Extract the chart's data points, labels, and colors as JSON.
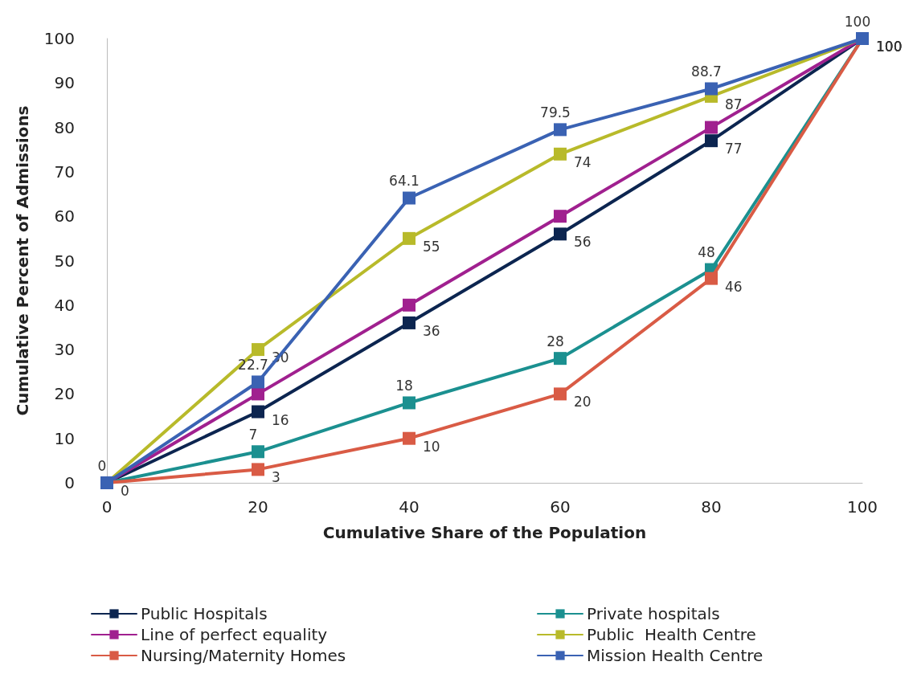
{
  "chart_data": {
    "type": "line",
    "xlabel": "Cumulative Share of the Population",
    "ylabel": "Cumulative Percent of Admissions",
    "x": [
      0,
      20,
      40,
      60,
      80,
      100
    ],
    "xlim": [
      0,
      100
    ],
    "xticks": [
      0,
      20,
      40,
      60,
      80,
      100
    ],
    "ylim": [
      0,
      100
    ],
    "yticks": [
      0,
      10,
      20,
      30,
      40,
      50,
      60,
      70,
      80,
      90,
      100
    ],
    "grid": false,
    "legend": "bottom",
    "marker": "square",
    "line_style": "solid",
    "series": [
      {
        "name": "Public Hospitals",
        "color": "#0c2550",
        "values": [
          0,
          16,
          36,
          56,
          77,
          100
        ],
        "value_labels": [
          "0",
          "16",
          "36",
          "56",
          "77",
          "100"
        ]
      },
      {
        "name": "Private hospitals",
        "color": "#1b9090",
        "values": [
          0,
          7,
          18,
          28,
          48,
          100
        ],
        "value_labels": [
          null,
          "7",
          "18",
          "28",
          "48",
          null
        ]
      },
      {
        "name": "Line of perfect equality",
        "color": "#a0208f",
        "values": [
          0,
          20,
          40,
          60,
          80,
          100
        ]
      },
      {
        "name": "Public  Health Centre",
        "color": "#b8ba2a",
        "values": [
          0,
          30,
          55,
          74,
          87,
          100
        ],
        "value_labels": [
          null,
          "30",
          "55",
          "74",
          "87",
          "100"
        ]
      },
      {
        "name": "Nursing/Maternity Homes",
        "color": "#d95b45",
        "values": [
          0,
          3,
          10,
          20,
          46,
          100
        ],
        "value_labels": [
          null,
          "3",
          "10",
          "20",
          "46",
          "100"
        ]
      },
      {
        "name": "Mission Health Centre",
        "color": "#3a62b3",
        "values": [
          0,
          22.7,
          64.1,
          79.5,
          88.7,
          100
        ],
        "value_labels": [
          "0",
          "22.7",
          "64.1",
          "79.5",
          "88.7",
          "100"
        ]
      }
    ]
  }
}
